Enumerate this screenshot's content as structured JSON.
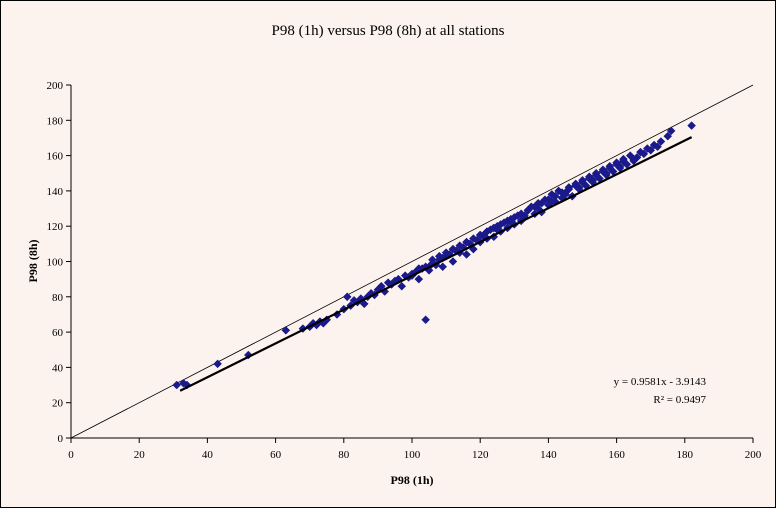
{
  "chart_data": {
    "type": "scatter",
    "title": "P98 (1h) versus P98 (8h) at all stations",
    "xlabel": "P98 (1h)",
    "ylabel": "P98 (8h)",
    "xlim": [
      0,
      200
    ],
    "ylim": [
      0,
      200
    ],
    "x_ticks": [
      "0",
      "20",
      "40",
      "60",
      "80",
      "100",
      "120",
      "140",
      "160",
      "180",
      "200"
    ],
    "y_ticks": [
      "0",
      "20",
      "40",
      "60",
      "80",
      "100",
      "120",
      "140",
      "160",
      "180",
      "200"
    ],
    "grid": false,
    "legend": "none",
    "marker_color": "#1a1a8c",
    "reference_line": {
      "label": "y = x",
      "x": [
        0,
        200
      ],
      "y": [
        0,
        200
      ]
    },
    "trendline": {
      "slope": 0.9581,
      "intercept": -3.9143,
      "x_range": [
        32,
        182
      ],
      "equation": "y = 0.9581x - 3.9143",
      "r2_label": "R² = 0.9497"
    },
    "series": [
      {
        "x": [
          31,
          33,
          34,
          43,
          52,
          63,
          68,
          70,
          71,
          72,
          73,
          74,
          75,
          78,
          80,
          81,
          82,
          83,
          84,
          85,
          86,
          87,
          88,
          89,
          90,
          91,
          92,
          93,
          94,
          95,
          96,
          97,
          98,
          99,
          100,
          101,
          102,
          103,
          104,
          104,
          105,
          106,
          107,
          108,
          109,
          110,
          111,
          112,
          113,
          114,
          115,
          116,
          117,
          118,
          119,
          120,
          121,
          122,
          123,
          124,
          125,
          126,
          127,
          128,
          129,
          130,
          131,
          132,
          133,
          134,
          135,
          136,
          137,
          138,
          139,
          140,
          141,
          142,
          143,
          144,
          145,
          146,
          147,
          148,
          149,
          150,
          151,
          152,
          153,
          154,
          155,
          156,
          157,
          158,
          159,
          160,
          161,
          162,
          163,
          164,
          165,
          166,
          167,
          168,
          169,
          170,
          171,
          172,
          173,
          175,
          176,
          182,
          100,
          102,
          106,
          108,
          110,
          112,
          114,
          116,
          118,
          120,
          122,
          124,
          126,
          128,
          130,
          132,
          134,
          136,
          138,
          140,
          142,
          144,
          146,
          148,
          150,
          152,
          154,
          156,
          158,
          160,
          162,
          105,
          109,
          113,
          117,
          121,
          125,
          129,
          133,
          137,
          141,
          145,
          149,
          153,
          157,
          161,
          165,
          108,
          112,
          116,
          120,
          124,
          128,
          132,
          136,
          140,
          144,
          148,
          152,
          156
        ],
        "y": [
          30,
          31,
          30,
          42,
          47,
          61,
          62,
          63,
          65,
          64,
          66,
          65,
          67,
          70,
          73,
          80,
          75,
          78,
          77,
          79,
          76,
          80,
          82,
          81,
          84,
          86,
          83,
          88,
          87,
          89,
          90,
          86,
          92,
          91,
          93,
          94,
          90,
          96,
          67,
          97,
          95,
          99,
          98,
          101,
          97,
          103,
          104,
          100,
          106,
          105,
          108,
          104,
          110,
          107,
          112,
          111,
          115,
          113,
          118,
          114,
          120,
          117,
          122,
          119,
          124,
          121,
          126,
          123,
          125,
          129,
          131,
          127,
          133,
          128,
          135,
          132,
          138,
          134,
          140,
          136,
          139,
          142,
          137,
          144,
          141,
          146,
          143,
          148,
          145,
          150,
          147,
          152,
          149,
          154,
          151,
          156,
          153,
          158,
          155,
          160,
          157,
          159,
          162,
          161,
          164,
          163,
          166,
          165,
          168,
          171,
          174,
          177,
          92,
          96,
          101,
          103,
          105,
          107,
          109,
          111,
          113,
          115,
          117,
          119,
          121,
          123,
          125,
          127,
          129,
          131,
          133,
          135,
          137,
          139,
          141,
          143,
          145,
          147,
          149,
          151,
          153,
          155,
          157,
          97,
          102,
          106,
          110,
          114,
          118,
          122,
          126,
          130,
          134,
          138,
          142,
          146,
          150,
          154,
          158,
          103,
          107,
          111,
          115,
          119,
          123,
          127,
          131,
          135,
          139,
          143,
          147,
          151
        ]
      }
    ]
  }
}
